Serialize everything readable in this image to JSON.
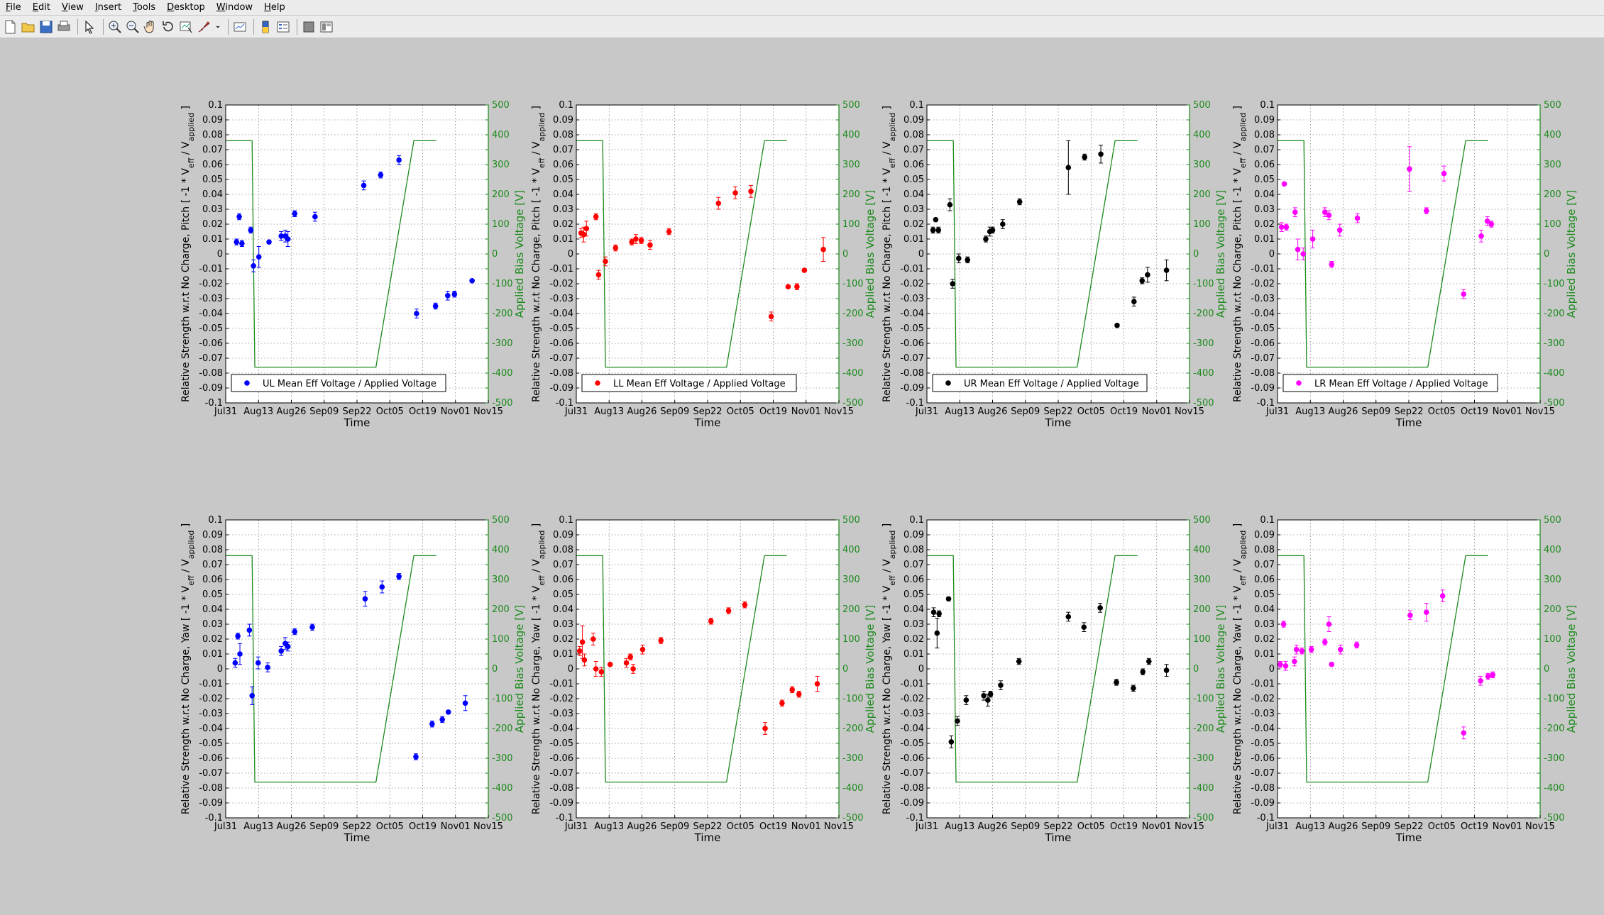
{
  "menu": [
    {
      "label": "File",
      "accel": "F"
    },
    {
      "label": "Edit",
      "accel": "E"
    },
    {
      "label": "View",
      "accel": "V"
    },
    {
      "label": "Insert",
      "accel": "I"
    },
    {
      "label": "Tools",
      "accel": "T"
    },
    {
      "label": "Desktop",
      "accel": "D"
    },
    {
      "label": "Window",
      "accel": "W"
    },
    {
      "label": "Help",
      "accel": "H"
    }
  ],
  "toolbar": [
    {
      "name": "new-figure-icon"
    },
    {
      "name": "open-file-icon"
    },
    {
      "name": "save-icon"
    },
    {
      "name": "print-icon"
    },
    {
      "sep": true
    },
    {
      "name": "select-arrow-icon"
    },
    {
      "sep": true
    },
    {
      "name": "zoom-in-icon"
    },
    {
      "name": "zoom-out-icon"
    },
    {
      "name": "pan-hand-icon"
    },
    {
      "name": "rotate-3d-icon"
    },
    {
      "name": "data-cursor-icon"
    },
    {
      "name": "brush-icon"
    },
    {
      "name": "brush-dropdown-icon"
    },
    {
      "sep": true
    },
    {
      "name": "link-plot-icon"
    },
    {
      "sep": true
    },
    {
      "name": "colorbar-icon"
    },
    {
      "name": "legend-icon"
    },
    {
      "sep": true
    },
    {
      "name": "hide-plot-tools-icon"
    },
    {
      "name": "show-plot-tools-icon"
    }
  ],
  "chart_data": {
    "type": "scatter",
    "x_ticks": [
      "Jul31",
      "Aug13",
      "Aug26",
      "Sep09",
      "Sep22",
      "Oct05",
      "Oct19",
      "Nov01",
      "Nov15"
    ],
    "xlabel": "Time",
    "y_ticks": [
      "0.1",
      "0.09",
      "0.08",
      "0.07",
      "0.06",
      "0.05",
      "0.04",
      "0.03",
      "0.02",
      "0.01",
      "0",
      "-0.01",
      "-0.02",
      "-0.03",
      "-0.04",
      "-0.05",
      "-0.06",
      "-0.07",
      "-0.08",
      "-0.09",
      "-0.1"
    ],
    "y2_ticks": [
      "500",
      "400",
      "300",
      "200",
      "100",
      "0",
      "-100",
      "-200",
      "-300",
      "-400",
      "-500"
    ],
    "ylim": [
      -0.1,
      0.1
    ],
    "y2lim": [
      -500,
      500
    ],
    "y2label": "Applied Bias Voltage [V]",
    "grid": true,
    "legend_position": "bottom-left",
    "voltage_series": {
      "color": "#1c8a1c",
      "x": [
        0,
        3.9,
        4.3,
        22.2,
        27.8,
        31.1
      ],
      "y": [
        380,
        380,
        -380,
        -380,
        380,
        380
      ]
    },
    "panels": [
      {
        "id": "UL-pitch",
        "ylabel": "Relative Strength w.r.t No Charge, Pitch [ -1 * V_eff / V_applied ]",
        "legend": "UL Mean Eff Voltage / Applied Voltage",
        "color": "#0000ff",
        "points": [
          {
            "x": 1.6,
            "y": 0.008,
            "e": 0.002
          },
          {
            "x": 2.0,
            "y": 0.025,
            "e": 0.002
          },
          {
            "x": 2.4,
            "y": 0.007,
            "e": 0.002
          },
          {
            "x": 3.7,
            "y": 0.016,
            "e": 0.002
          },
          {
            "x": 4.1,
            "y": -0.008,
            "e": 0.004
          },
          {
            "x": 4.9,
            "y": -0.002,
            "e": 0.007
          },
          {
            "x": 6.4,
            "y": 0.008,
            "e": 0.001
          },
          {
            "x": 8.2,
            "y": 0.012,
            "e": 0.003
          },
          {
            "x": 8.8,
            "y": 0.012,
            "e": 0.004
          },
          {
            "x": 9.2,
            "y": 0.01,
            "e": 0.005
          },
          {
            "x": 10.2,
            "y": 0.027,
            "e": 0.002
          },
          {
            "x": 13.2,
            "y": 0.025,
            "e": 0.003
          },
          {
            "x": 20.4,
            "y": 0.046,
            "e": 0.003
          },
          {
            "x": 22.9,
            "y": 0.053,
            "e": 0.002
          },
          {
            "x": 25.6,
            "y": 0.063,
            "e": 0.003
          },
          {
            "x": 28.2,
            "y": -0.04,
            "e": 0.003
          },
          {
            "x": 31.0,
            "y": -0.035,
            "e": 0.002
          },
          {
            "x": 32.8,
            "y": -0.028,
            "e": 0.003
          },
          {
            "x": 33.8,
            "y": -0.027,
            "e": 0.002
          },
          {
            "x": 36.4,
            "y": -0.018,
            "e": 0.001
          }
        ]
      },
      {
        "id": "LL-pitch",
        "ylabel": "Relative Strength w.r.t No Charge, Pitch [ -1 * V_eff / V_applied ]",
        "legend": "LL Mean Eff Voltage / Applied Voltage",
        "color": "#ff0000",
        "points": [
          {
            "x": 0.7,
            "y": 0.014,
            "e": 0.003
          },
          {
            "x": 1.1,
            "y": 0.013,
            "e": 0.005
          },
          {
            "x": 1.5,
            "y": 0.017,
            "e": 0.005
          },
          {
            "x": 2.9,
            "y": 0.025,
            "e": 0.002
          },
          {
            "x": 3.3,
            "y": -0.014,
            "e": 0.003
          },
          {
            "x": 4.3,
            "y": -0.005,
            "e": 0.003
          },
          {
            "x": 5.8,
            "y": 0.004,
            "e": 0.002
          },
          {
            "x": 8.2,
            "y": 0.008,
            "e": 0.002
          },
          {
            "x": 8.8,
            "y": 0.01,
            "e": 0.003
          },
          {
            "x": 9.6,
            "y": 0.009,
            "e": 0.002
          },
          {
            "x": 10.9,
            "y": 0.006,
            "e": 0.003
          },
          {
            "x": 13.7,
            "y": 0.015,
            "e": 0.002
          },
          {
            "x": 21.0,
            "y": 0.034,
            "e": 0.004
          },
          {
            "x": 23.5,
            "y": 0.041,
            "e": 0.004
          },
          {
            "x": 25.8,
            "y": 0.042,
            "e": 0.004
          },
          {
            "x": 28.8,
            "y": -0.042,
            "e": 0.003
          },
          {
            "x": 31.3,
            "y": -0.022,
            "e": 0.001
          },
          {
            "x": 32.6,
            "y": -0.022,
            "e": 0.002
          },
          {
            "x": 33.7,
            "y": -0.011,
            "e": 0.001
          },
          {
            "x": 36.5,
            "y": 0.003,
            "e": 0.008
          }
        ]
      },
      {
        "id": "UR-pitch",
        "ylabel": "Relative Strength w.r.t No Charge, Pitch [ -1 * V_eff / V_applied ]",
        "legend": "UR Mean Eff Voltage / Applied Voltage",
        "color": "#000000",
        "points": [
          {
            "x": 0.9,
            "y": 0.016,
            "e": 0.002
          },
          {
            "x": 1.3,
            "y": 0.023,
            "e": 0.001
          },
          {
            "x": 1.7,
            "y": 0.016,
            "e": 0.002
          },
          {
            "x": 3.4,
            "y": 0.033,
            "e": 0.004
          },
          {
            "x": 3.8,
            "y": -0.02,
            "e": 0.003
          },
          {
            "x": 4.7,
            "y": -0.003,
            "e": 0.003
          },
          {
            "x": 6.0,
            "y": -0.004,
            "e": 0.002
          },
          {
            "x": 8.7,
            "y": 0.01,
            "e": 0.002
          },
          {
            "x": 9.3,
            "y": 0.015,
            "e": 0.003
          },
          {
            "x": 9.7,
            "y": 0.016,
            "e": 0.002
          },
          {
            "x": 11.2,
            "y": 0.02,
            "e": 0.003
          },
          {
            "x": 13.7,
            "y": 0.035,
            "e": 0.002
          },
          {
            "x": 20.9,
            "y": 0.058,
            "e": 0.018
          },
          {
            "x": 23.3,
            "y": 0.065,
            "e": 0.002
          },
          {
            "x": 25.7,
            "y": 0.067,
            "e": 0.006
          },
          {
            "x": 28.1,
            "y": -0.048,
            "e": 0.001
          },
          {
            "x": 30.6,
            "y": -0.032,
            "e": 0.003
          },
          {
            "x": 31.8,
            "y": -0.018,
            "e": 0.002
          },
          {
            "x": 32.6,
            "y": -0.014,
            "e": 0.005
          },
          {
            "x": 35.4,
            "y": -0.011,
            "e": 0.007
          }
        ]
      },
      {
        "id": "LR-pitch",
        "ylabel": "Relative Strength w.r.t No Charge, Pitch [ -1 * V_eff / V_applied ]",
        "legend": "LR Mean Eff Voltage / Applied Voltage",
        "color": "#ff00ff",
        "points": [
          {
            "x": 0.6,
            "y": 0.018,
            "e": 0.003
          },
          {
            "x": 1.0,
            "y": 0.047,
            "e": 0.001
          },
          {
            "x": 1.3,
            "y": 0.018,
            "e": 0.002
          },
          {
            "x": 2.6,
            "y": 0.028,
            "e": 0.003
          },
          {
            "x": 3.0,
            "y": 0.003,
            "e": 0.007
          },
          {
            "x": 3.8,
            "y": 0.0,
            "e": 0.004
          },
          {
            "x": 5.2,
            "y": 0.01,
            "e": 0.006
          },
          {
            "x": 7.0,
            "y": 0.028,
            "e": 0.003
          },
          {
            "x": 7.6,
            "y": 0.026,
            "e": 0.003
          },
          {
            "x": 8.0,
            "y": -0.007,
            "e": 0.002
          },
          {
            "x": 9.2,
            "y": 0.016,
            "e": 0.004
          },
          {
            "x": 11.8,
            "y": 0.024,
            "e": 0.003
          },
          {
            "x": 19.5,
            "y": 0.057,
            "e": 0.015
          },
          {
            "x": 22.0,
            "y": 0.029,
            "e": 0.002
          },
          {
            "x": 24.6,
            "y": 0.054,
            "e": 0.005
          },
          {
            "x": 27.5,
            "y": -0.027,
            "e": 0.003
          },
          {
            "x": 30.1,
            "y": 0.012,
            "e": 0.004
          },
          {
            "x": 31.0,
            "y": 0.022,
            "e": 0.003
          },
          {
            "x": 31.6,
            "y": 0.02,
            "e": 0.002
          }
        ]
      },
      {
        "id": "UL-yaw",
        "ylabel": "Relative Strength w.r.t No Charge, Yaw [ -1 * V_eff / V_applied ]",
        "color": "#0000ff",
        "points": [
          {
            "x": 1.4,
            "y": 0.004,
            "e": 0.003
          },
          {
            "x": 1.8,
            "y": 0.022,
            "e": 0.002
          },
          {
            "x": 2.1,
            "y": 0.01,
            "e": 0.007
          },
          {
            "x": 3.5,
            "y": 0.026,
            "e": 0.004
          },
          {
            "x": 3.9,
            "y": -0.018,
            "e": 0.006
          },
          {
            "x": 4.8,
            "y": 0.004,
            "e": 0.004
          },
          {
            "x": 6.2,
            "y": 0.001,
            "e": 0.003
          },
          {
            "x": 8.2,
            "y": 0.012,
            "e": 0.003
          },
          {
            "x": 8.8,
            "y": 0.017,
            "e": 0.004
          },
          {
            "x": 9.2,
            "y": 0.015,
            "e": 0.003
          },
          {
            "x": 10.2,
            "y": 0.025,
            "e": 0.002
          },
          {
            "x": 12.8,
            "y": 0.028,
            "e": 0.002
          },
          {
            "x": 20.6,
            "y": 0.047,
            "e": 0.005
          },
          {
            "x": 23.1,
            "y": 0.055,
            "e": 0.004
          },
          {
            "x": 25.6,
            "y": 0.062,
            "e": 0.002
          },
          {
            "x": 28.1,
            "y": -0.059,
            "e": 0.002
          },
          {
            "x": 30.5,
            "y": -0.037,
            "e": 0.002
          },
          {
            "x": 32.0,
            "y": -0.034,
            "e": 0.002
          },
          {
            "x": 32.9,
            "y": -0.029,
            "e": 0.001
          },
          {
            "x": 35.4,
            "y": -0.023,
            "e": 0.005
          }
        ]
      },
      {
        "id": "LL-yaw",
        "ylabel": "Relative Strength w.r.t No Charge, Yaw [ -1 * V_eff / V_applied ]",
        "color": "#ff0000",
        "points": [
          {
            "x": 0.5,
            "y": 0.012,
            "e": 0.003
          },
          {
            "x": 0.9,
            "y": 0.018,
            "e": 0.011
          },
          {
            "x": 1.2,
            "y": 0.006,
            "e": 0.004
          },
          {
            "x": 2.5,
            "y": 0.02,
            "e": 0.004
          },
          {
            "x": 2.9,
            "y": 0.0,
            "e": 0.005
          },
          {
            "x": 3.7,
            "y": -0.002,
            "e": 0.003
          },
          {
            "x": 5.0,
            "y": 0.003,
            "e": 0.001
          },
          {
            "x": 7.4,
            "y": 0.004,
            "e": 0.003
          },
          {
            "x": 8.0,
            "y": 0.008,
            "e": 0.002
          },
          {
            "x": 8.4,
            "y": 0.0,
            "e": 0.003
          },
          {
            "x": 9.8,
            "y": 0.013,
            "e": 0.003
          },
          {
            "x": 12.5,
            "y": 0.019,
            "e": 0.002
          },
          {
            "x": 19.9,
            "y": 0.032,
            "e": 0.002
          },
          {
            "x": 22.5,
            "y": 0.039,
            "e": 0.002
          },
          {
            "x": 24.9,
            "y": 0.043,
            "e": 0.002
          },
          {
            "x": 27.9,
            "y": -0.04,
            "e": 0.004
          },
          {
            "x": 30.4,
            "y": -0.023,
            "e": 0.002
          },
          {
            "x": 31.9,
            "y": -0.014,
            "e": 0.002
          },
          {
            "x": 32.9,
            "y": -0.017,
            "e": 0.002
          },
          {
            "x": 35.6,
            "y": -0.01,
            "e": 0.005
          }
        ]
      },
      {
        "id": "UR-yaw",
        "ylabel": "Relative Strength w.r.t No Charge, Yaw [ -1 * V_eff / V_applied ]",
        "color": "#000000",
        "points": [
          {
            "x": 1.0,
            "y": 0.038,
            "e": 0.003
          },
          {
            "x": 1.5,
            "y": 0.024,
            "e": 0.01
          },
          {
            "x": 1.8,
            "y": 0.037,
            "e": 0.002
          },
          {
            "x": 3.2,
            "y": 0.047,
            "e": 0.001
          },
          {
            "x": 3.6,
            "y": -0.049,
            "e": 0.004
          },
          {
            "x": 4.5,
            "y": -0.035,
            "e": 0.003
          },
          {
            "x": 5.8,
            "y": -0.021,
            "e": 0.003
          },
          {
            "x": 8.4,
            "y": -0.018,
            "e": 0.003
          },
          {
            "x": 9.0,
            "y": -0.021,
            "e": 0.004
          },
          {
            "x": 9.4,
            "y": -0.017,
            "e": 0.002
          },
          {
            "x": 10.9,
            "y": -0.011,
            "e": 0.003
          },
          {
            "x": 13.6,
            "y": 0.005,
            "e": 0.002
          },
          {
            "x": 20.9,
            "y": 0.035,
            "e": 0.003
          },
          {
            "x": 23.2,
            "y": 0.028,
            "e": 0.003
          },
          {
            "x": 25.6,
            "y": 0.041,
            "e": 0.003
          },
          {
            "x": 28.0,
            "y": -0.009,
            "e": 0.002
          },
          {
            "x": 30.5,
            "y": -0.013,
            "e": 0.002
          },
          {
            "x": 31.9,
            "y": -0.002,
            "e": 0.002
          },
          {
            "x": 32.8,
            "y": 0.005,
            "e": 0.002
          },
          {
            "x": 35.4,
            "y": -0.001,
            "e": 0.004
          }
        ]
      },
      {
        "id": "LR-yaw",
        "ylabel": "Relative Strength w.r.t No Charge, Yaw [ -1 * V_eff / V_applied ]",
        "color": "#ff00ff",
        "points": [
          {
            "x": 0.4,
            "y": 0.003,
            "e": 0.002
          },
          {
            "x": 0.9,
            "y": 0.03,
            "e": 0.002
          },
          {
            "x": 1.2,
            "y": 0.002,
            "e": 0.003
          },
          {
            "x": 2.5,
            "y": 0.005,
            "e": 0.003
          },
          {
            "x": 2.8,
            "y": 0.013,
            "e": 0.003
          },
          {
            "x": 3.6,
            "y": 0.012,
            "e": 0.002
          },
          {
            "x": 5.0,
            "y": 0.013,
            "e": 0.002
          },
          {
            "x": 7.0,
            "y": 0.018,
            "e": 0.002
          },
          {
            "x": 7.6,
            "y": 0.03,
            "e": 0.005
          },
          {
            "x": 8.0,
            "y": 0.003,
            "e": 0.001
          },
          {
            "x": 9.3,
            "y": 0.013,
            "e": 0.003
          },
          {
            "x": 11.7,
            "y": 0.016,
            "e": 0.002
          },
          {
            "x": 19.6,
            "y": 0.036,
            "e": 0.003
          },
          {
            "x": 22.0,
            "y": 0.038,
            "e": 0.006
          },
          {
            "x": 24.4,
            "y": 0.049,
            "e": 0.004
          },
          {
            "x": 27.5,
            "y": -0.043,
            "e": 0.004
          },
          {
            "x": 30.0,
            "y": -0.008,
            "e": 0.003
          },
          {
            "x": 31.1,
            "y": -0.005,
            "e": 0.002
          },
          {
            "x": 31.8,
            "y": -0.004,
            "e": 0.002
          }
        ]
      }
    ]
  }
}
